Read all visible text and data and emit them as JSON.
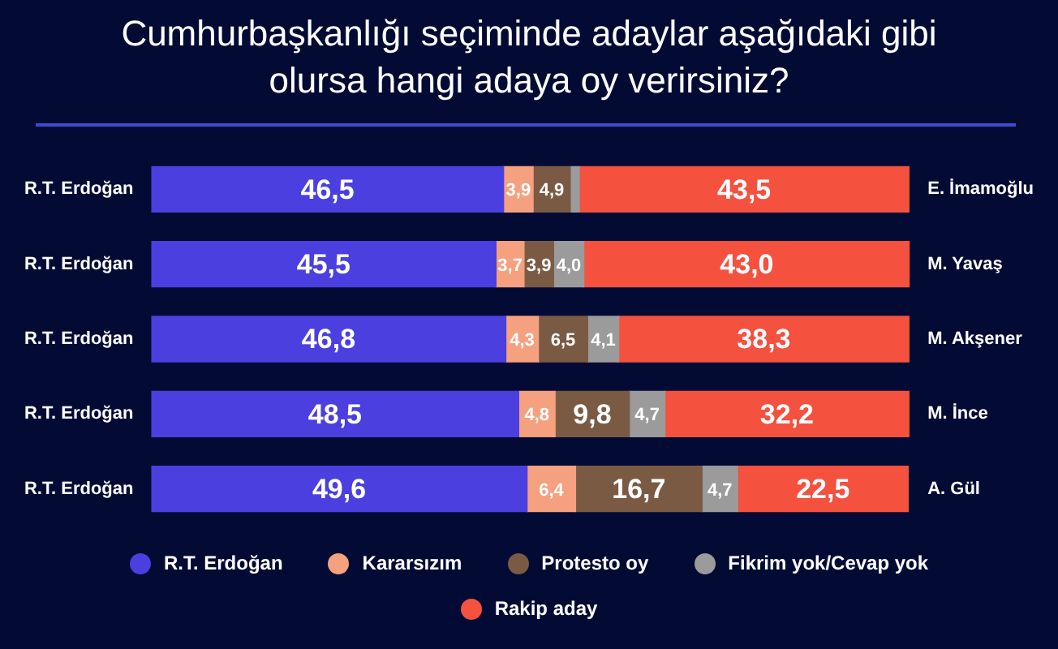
{
  "chart_data": {
    "type": "bar",
    "orientation": "horizontal",
    "stacked": true,
    "title": "Cumhurbaşkanlığı seçiminde adaylar aşağıdaki gibi olursa hangi adaya oy verirsiniz?",
    "categories": [
      "R.T. Erdoğan",
      "R.T. Erdoğan",
      "R.T. Erdoğan",
      "R.T. Erdoğan",
      "R.T. Erdoğan"
    ],
    "y2_categories": [
      "E. İmamoğlu",
      "M. Yavaş",
      "M. Akşener",
      "M. İnce",
      "A. Gül"
    ],
    "series": [
      {
        "name": "R.T. Erdoğan",
        "color": "#4b3fe0",
        "values": [
          46.5,
          45.5,
          46.8,
          48.5,
          49.6
        ],
        "value_labels": [
          "46,5",
          "45,5",
          "46,8",
          "48,5",
          "49,6"
        ]
      },
      {
        "name": "Kararsızım",
        "color": "#f5a07e",
        "values": [
          3.9,
          3.7,
          4.3,
          4.8,
          6.4
        ],
        "value_labels": [
          "3,9",
          "3,7",
          "4,3",
          "4,8",
          "6,4"
        ]
      },
      {
        "name": "Protesto oy",
        "color": "#7b5a44",
        "values": [
          4.9,
          3.9,
          6.5,
          9.8,
          16.7
        ],
        "value_labels": [
          "4,9",
          "3,9",
          "6,5",
          "9,8",
          "16,7"
        ]
      },
      {
        "name": "Fikrim yok/Cevap yok",
        "color": "#9b9b9b",
        "values": [
          1.2,
          4.0,
          4.1,
          4.7,
          4.7
        ],
        "value_labels": [
          null,
          "4,0",
          "4,1",
          "4,7",
          "4,7"
        ]
      },
      {
        "name": "Rakip aday",
        "color": "#f5513f",
        "values": [
          43.5,
          43.0,
          38.3,
          32.2,
          22.5
        ],
        "value_labels": [
          "43,5",
          "43,0",
          "38,3",
          "32,2",
          "22,5"
        ]
      }
    ],
    "legend": "bottom"
  }
}
